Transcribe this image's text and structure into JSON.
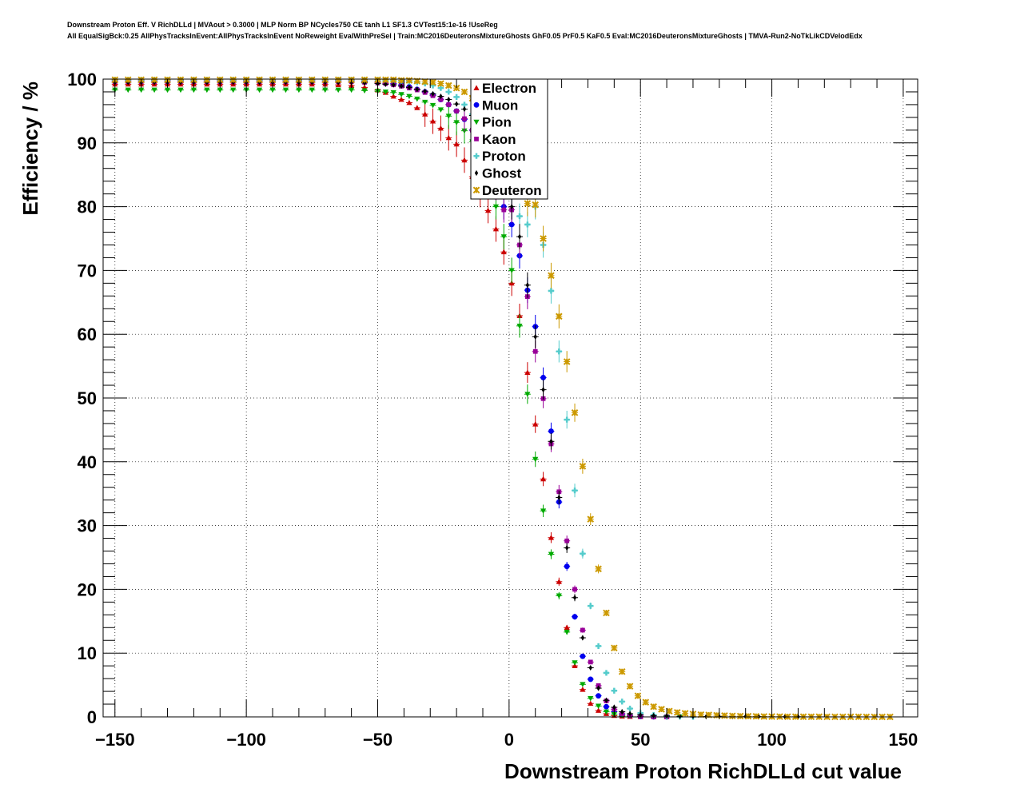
{
  "header": {
    "title_line1": "Downstream Proton Eff. V RichDLLd | MVAout > 0.3000 | MLP Norm BP NCycles750 CE tanh L1 SF1.3 CVTest15:1e-16 !UseReg",
    "title_line2": "All EqualSigBck:0.25 AllPhysTracksInEvent:AllPhysTracksInEvent NoReweight EvalWithPreSel | Train:MC2016DeuteronsMixtureGhosts GhF0.05 PrF0.5 KaF0.5 Eval:MC2016DeuteronsMixtureGhosts | TMVA-Run2-NoTkLikCDVelodEdx"
  },
  "chart_data": {
    "type": "scatter",
    "xlabel": "Downstream Proton RichDLLd cut value",
    "ylabel": "Efficiency / %",
    "xlim": [
      -150,
      150
    ],
    "ylim": [
      0,
      100
    ],
    "grid": true,
    "legend_position": "top-center",
    "x_ticks": [
      "−150",
      "−100",
      "−50",
      "0",
      "50",
      "100",
      "150"
    ],
    "y_ticks": [
      "0",
      "10",
      "20",
      "30",
      "40",
      "50",
      "60",
      "70",
      "80",
      "90",
      "100"
    ],
    "series": [
      {
        "name": "Electron",
        "color": "#cc0000",
        "marker": "triangle-up",
        "x": [
          -150,
          -145,
          -140,
          -135,
          -130,
          -125,
          -120,
          -115,
          -110,
          -105,
          -100,
          -95,
          -90,
          -85,
          -80,
          -75,
          -70,
          -65,
          -60,
          -55,
          -50,
          -47,
          -44,
          -41,
          -38,
          -35,
          -32,
          -29,
          -26,
          -23,
          -20,
          -17,
          -14,
          -11,
          -8,
          -5,
          -2,
          1,
          4,
          7,
          10,
          13,
          16,
          19,
          22,
          25,
          28,
          31,
          34,
          37,
          40,
          43,
          46,
          50,
          55,
          60
        ],
        "y": [
          99.2,
          99.2,
          99.2,
          99.2,
          99.2,
          99.2,
          99.2,
          99.2,
          99.2,
          99.2,
          99.2,
          99.2,
          99.2,
          99.2,
          99.2,
          99.2,
          99.2,
          99.1,
          99.0,
          98.7,
          98.3,
          97.9,
          97.3,
          96.8,
          96.3,
          95.5,
          94.5,
          93.4,
          92.3,
          90.8,
          89.8,
          87.3,
          84.7,
          81.9,
          79.4,
          76.5,
          72.9,
          68.0,
          62.9,
          54.0,
          45.9,
          37.3,
          28.1,
          21.2,
          14.0,
          8.0,
          4.3,
          2.1,
          1.0,
          0.5,
          0.2,
          0.1,
          0.05,
          0.02,
          0.0,
          0.0
        ]
      },
      {
        "name": "Muon",
        "color": "#0000ee",
        "marker": "circle",
        "x": [
          -150,
          -145,
          -140,
          -135,
          -130,
          -125,
          -120,
          -115,
          -110,
          -105,
          -100,
          -95,
          -90,
          -85,
          -80,
          -75,
          -70,
          -65,
          -60,
          -55,
          -50,
          -47,
          -44,
          -41,
          -38,
          -35,
          -32,
          -29,
          -26,
          -23,
          -20,
          -17,
          -14,
          -11,
          -8,
          -5,
          -2,
          1,
          4,
          7,
          10,
          13,
          16,
          19,
          22,
          25,
          28,
          31,
          34,
          37,
          40,
          43,
          46,
          50,
          55,
          60
        ],
        "y": [
          99.8,
          99.8,
          99.8,
          99.8,
          99.8,
          99.8,
          99.8,
          99.8,
          99.8,
          99.8,
          99.8,
          99.8,
          99.8,
          99.8,
          99.8,
          99.8,
          99.8,
          99.8,
          99.8,
          99.7,
          99.6,
          99.5,
          99.3,
          99.1,
          98.8,
          98.4,
          98.0,
          97.5,
          96.8,
          96.0,
          95.0,
          93.7,
          92.0,
          89.5,
          86.5,
          83.0,
          80.0,
          77.2,
          72.3,
          66.9,
          61.2,
          53.2,
          44.8,
          33.7,
          23.6,
          15.7,
          9.5,
          5.9,
          3.3,
          1.6,
          0.8,
          0.4,
          0.2,
          0.05,
          0.0,
          0.0
        ]
      },
      {
        "name": "Pion",
        "color": "#00aa00",
        "marker": "triangle-down",
        "x": [
          -150,
          -145,
          -140,
          -135,
          -130,
          -125,
          -120,
          -115,
          -110,
          -105,
          -100,
          -95,
          -90,
          -85,
          -80,
          -75,
          -70,
          -65,
          -60,
          -55,
          -50,
          -47,
          -44,
          -41,
          -38,
          -35,
          -32,
          -29,
          -26,
          -23,
          -20,
          -17,
          -14,
          -11,
          -8,
          -5,
          -2,
          1,
          4,
          7,
          10,
          13,
          16,
          19,
          22,
          25,
          28,
          31,
          34,
          37,
          40,
          43,
          46,
          50,
          55,
          60,
          65
        ],
        "y": [
          98.3,
          98.3,
          98.3,
          98.3,
          98.3,
          98.3,
          98.3,
          98.3,
          98.3,
          98.3,
          98.3,
          98.3,
          98.3,
          98.3,
          98.3,
          98.3,
          98.3,
          98.3,
          98.3,
          98.2,
          98.1,
          98.0,
          97.9,
          97.6,
          97.3,
          96.9,
          96.4,
          95.9,
          95.2,
          94.2,
          93.2,
          91.9,
          90.2,
          87.4,
          84.0,
          80.0,
          75.3,
          70.0,
          61.3,
          50.6,
          40.4,
          32.3,
          25.5,
          19.0,
          13.3,
          8.5,
          5.1,
          2.9,
          1.7,
          0.8,
          0.4,
          0.2,
          0.1,
          0.05,
          0.02,
          0.0,
          0.0
        ]
      },
      {
        "name": "Kaon",
        "color": "#990099",
        "marker": "square",
        "x": [
          -150,
          -145,
          -140,
          -135,
          -130,
          -125,
          -120,
          -115,
          -110,
          -105,
          -100,
          -95,
          -90,
          -85,
          -80,
          -75,
          -70,
          -65,
          -60,
          -55,
          -50,
          -47,
          -44,
          -41,
          -38,
          -35,
          -32,
          -29,
          -26,
          -23,
          -20,
          -17,
          -14,
          -11,
          -8,
          -5,
          -2,
          1,
          4,
          7,
          10,
          13,
          16,
          19,
          22,
          25,
          28,
          31,
          34,
          37,
          40,
          43,
          46,
          50,
          55,
          60
        ],
        "y": [
          99.6,
          99.6,
          99.6,
          99.6,
          99.6,
          99.6,
          99.6,
          99.6,
          99.6,
          99.6,
          99.6,
          99.6,
          99.6,
          99.6,
          99.6,
          99.6,
          99.6,
          99.6,
          99.6,
          99.5,
          99.4,
          99.3,
          99.1,
          98.9,
          98.6,
          98.3,
          97.9,
          97.4,
          96.8,
          96.0,
          95.0,
          93.8,
          92.0,
          89.6,
          86.5,
          83.0,
          79.5,
          79.5,
          74.0,
          65.9,
          57.3,
          49.9,
          42.8,
          35.3,
          27.6,
          20.0,
          13.6,
          8.6,
          4.9,
          2.5,
          1.2,
          0.5,
          0.2,
          0.1,
          0.0,
          0.0
        ]
      },
      {
        "name": "Proton",
        "color": "#55cccc",
        "marker": "cross",
        "x": [
          -150,
          -145,
          -140,
          -135,
          -130,
          -125,
          -120,
          -115,
          -110,
          -105,
          -100,
          -95,
          -90,
          -85,
          -80,
          -75,
          -70,
          -65,
          -60,
          -55,
          -50,
          -47,
          -44,
          -41,
          -38,
          -35,
          -32,
          -29,
          -26,
          -23,
          -20,
          -17,
          -14,
          -11,
          -8,
          -5,
          -2,
          1,
          4,
          7,
          10,
          13,
          16,
          19,
          22,
          25,
          28,
          31,
          34,
          37,
          40,
          43,
          46,
          50,
          55,
          60,
          65,
          70
        ],
        "y": [
          99.9,
          99.9,
          99.9,
          99.9,
          99.9,
          99.9,
          99.9,
          99.9,
          99.9,
          99.9,
          99.9,
          99.9,
          99.9,
          99.9,
          99.9,
          99.9,
          99.9,
          99.9,
          99.9,
          99.9,
          99.9,
          99.8,
          99.8,
          99.7,
          99.6,
          99.5,
          99.3,
          99.0,
          98.6,
          98.0,
          97.2,
          96.0,
          94.5,
          92.4,
          89.3,
          86.0,
          84.5,
          82.5,
          78.5,
          77.2,
          80.0,
          74.0,
          66.8,
          57.3,
          46.6,
          35.5,
          25.6,
          17.4,
          11.1,
          6.9,
          4.1,
          2.4,
          1.3,
          0.6,
          0.3,
          0.1,
          0.05,
          0.0
        ]
      },
      {
        "name": "Ghost",
        "color": "#000000",
        "marker": "diamond",
        "x": [
          -150,
          -145,
          -140,
          -135,
          -130,
          -125,
          -120,
          -115,
          -110,
          -105,
          -100,
          -95,
          -90,
          -85,
          -80,
          -75,
          -70,
          -65,
          -60,
          -55,
          -50,
          -47,
          -44,
          -41,
          -38,
          -35,
          -32,
          -29,
          -26,
          -23,
          -20,
          -17,
          -14,
          -11,
          -8,
          -5,
          -2,
          1,
          4,
          7,
          10,
          13,
          16,
          19,
          22,
          25,
          28,
          31,
          34,
          37,
          40,
          43,
          46,
          50,
          55,
          60,
          65,
          70,
          75,
          80,
          85,
          90,
          95,
          100,
          105,
          110,
          115
        ],
        "y": [
          99.5,
          99.5,
          99.5,
          99.5,
          99.5,
          99.5,
          99.5,
          99.5,
          99.5,
          99.5,
          99.5,
          99.5,
          99.5,
          99.5,
          99.5,
          99.5,
          99.5,
          99.5,
          99.5,
          99.4,
          99.3,
          99.2,
          99.1,
          98.9,
          98.7,
          98.4,
          98.1,
          97.7,
          97.3,
          96.8,
          96.1,
          95.3,
          94.3,
          92.8,
          90.8,
          88.0,
          84.8,
          80.0,
          75.3,
          67.7,
          59.6,
          51.3,
          43.2,
          34.4,
          26.5,
          18.7,
          12.4,
          7.7,
          4.5,
          2.6,
          1.5,
          0.8,
          0.5,
          0.3,
          0.2,
          0.15,
          0.1,
          0.1,
          0.05,
          0.05,
          0.05,
          0.05,
          0.05,
          0.02,
          0.02,
          0.02,
          0.0
        ]
      },
      {
        "name": "Deuteron",
        "color": "#cc9900",
        "marker": "star",
        "x": [
          -150,
          -145,
          -140,
          -135,
          -130,
          -125,
          -120,
          -115,
          -110,
          -105,
          -100,
          -95,
          -90,
          -85,
          -80,
          -75,
          -70,
          -65,
          -60,
          -55,
          -50,
          -47,
          -44,
          -41,
          -38,
          -35,
          -32,
          -29,
          -26,
          -23,
          -20,
          -17,
          -14,
          -11,
          -8,
          -5,
          -2,
          1,
          4,
          7,
          10,
          13,
          16,
          19,
          22,
          25,
          28,
          31,
          34,
          37,
          40,
          43,
          46,
          49,
          52,
          55,
          58,
          61,
          64,
          67,
          70,
          73,
          76,
          79,
          82,
          85,
          88,
          91,
          94,
          97,
          100,
          103,
          106,
          109,
          112,
          115,
          118,
          121,
          124,
          127,
          130,
          133,
          136,
          139,
          142,
          145
        ],
        "y": [
          99.9,
          99.9,
          99.9,
          99.9,
          99.9,
          99.9,
          99.9,
          99.9,
          99.9,
          99.9,
          99.9,
          99.9,
          99.9,
          99.9,
          99.9,
          99.9,
          99.9,
          99.9,
          99.9,
          99.9,
          99.9,
          99.9,
          99.9,
          99.8,
          99.8,
          99.7,
          99.6,
          99.5,
          99.3,
          99.0,
          98.6,
          98.0,
          97.0,
          95.6,
          93.5,
          91.0,
          89.0,
          86.5,
          83.5,
          80.5,
          80.3,
          75.0,
          69.2,
          62.8,
          55.7,
          47.7,
          39.3,
          31.0,
          23.2,
          16.3,
          10.8,
          7.1,
          4.8,
          3.3,
          2.3,
          1.6,
          1.2,
          0.9,
          0.7,
          0.55,
          0.45,
          0.35,
          0.3,
          0.25,
          0.2,
          0.15,
          0.12,
          0.1,
          0.08,
          0.06,
          0.05,
          0.04,
          0.03,
          0.03,
          0.02,
          0.02,
          0.02,
          0.01,
          0.01,
          0.01,
          0.01,
          0.01,
          0.0,
          0.0,
          0.0,
          0.0
        ]
      }
    ]
  }
}
